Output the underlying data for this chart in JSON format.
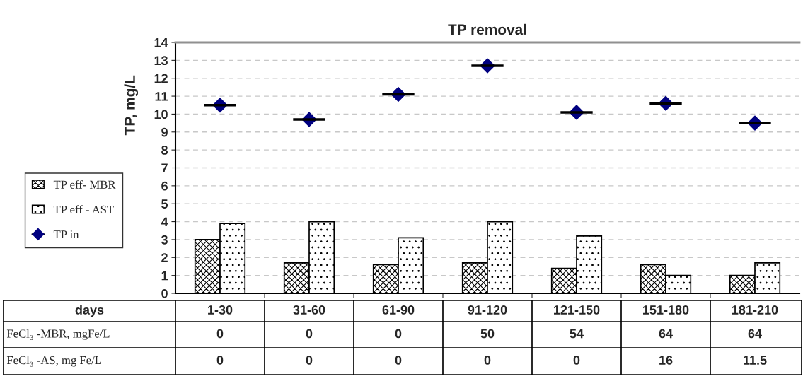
{
  "chart_data": {
    "type": "bar",
    "title": "TP removal",
    "ylabel": "TP, mg/L",
    "xlabel": "days",
    "categories": [
      "1-30",
      "31-60",
      "61-90",
      "91-120",
      "121-150",
      "151-180",
      "181-210"
    ],
    "series": [
      {
        "name": "TP eff- MBR",
        "color": "#000000",
        "values": [
          3.0,
          1.7,
          1.6,
          1.7,
          1.4,
          1.6,
          1.0
        ]
      },
      {
        "name": "TP eff - AST",
        "color": "#000000",
        "values": [
          3.9,
          4.0,
          3.1,
          4.0,
          3.2,
          1.0,
          1.7
        ]
      },
      {
        "name": "TP in",
        "type": "scatter",
        "color": "#000080",
        "marker": "diamond",
        "values": [
          10.5,
          9.7,
          11.1,
          12.7,
          10.1,
          10.6,
          9.5
        ]
      }
    ],
    "ylim": [
      0,
      14
    ],
    "yticks": [
      0,
      1,
      2,
      3,
      4,
      5,
      6,
      7,
      8,
      9,
      10,
      11,
      12,
      13,
      14
    ],
    "grid": "y",
    "legend": "left",
    "annotations": [
      "FeCl₃ -MBR, mgFe/L",
      "0",
      "0",
      "0",
      "50",
      "54",
      "64",
      "64",
      "FeCl₃ -AS, mg Fe/L",
      "0",
      "0",
      "0",
      "0",
      "0",
      "16",
      "11.5"
    ]
  }
}
